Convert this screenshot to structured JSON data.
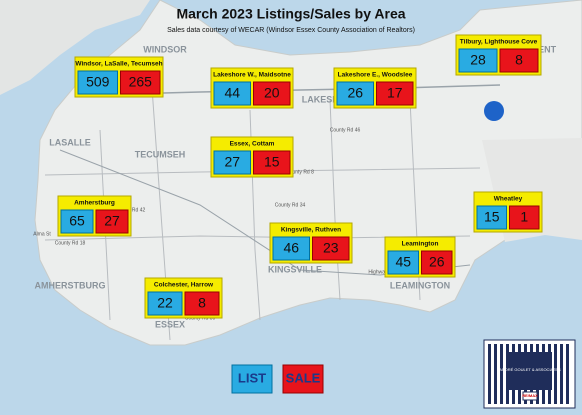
{
  "header": {
    "title": "March 2023 Listings/Sales by Area",
    "subtitle": "Sales data courtesy of WECAR (Windsor Essex County Association of Realtors)"
  },
  "areas": [
    {
      "name": "Windsor, LaSalle, Tecumseh",
      "list": 509,
      "sale": 265
    },
    {
      "name": "Lakeshore W., Maidsotne",
      "list": 44,
      "sale": 20
    },
    {
      "name": "Lakeshore E., Woodslee",
      "list": 26,
      "sale": 17
    },
    {
      "name": "Tilbury, Lighthouse Cove",
      "list": 28,
      "sale": 8
    },
    {
      "name": "Essex, Cottam",
      "list": 27,
      "sale": 15
    },
    {
      "name": "Amherstburg",
      "list": 65,
      "sale": 27
    },
    {
      "name": "Wheatley",
      "list": 15,
      "sale": 1
    },
    {
      "name": "Kingsville, Ruthven",
      "list": 46,
      "sale": 23
    },
    {
      "name": "Leamington",
      "list": 45,
      "sale": 26
    },
    {
      "name": "Colchester, Harrow",
      "list": 22,
      "sale": 8
    }
  ],
  "legend": {
    "list": "LIST",
    "sale": "SALE"
  },
  "places": [
    "WINDSOR",
    "TECUMSEH",
    "LASALLE",
    "AMHERSTBURG",
    "ESSEX",
    "KINGSVILLE",
    "LEAMINGTON",
    "CHATHAM-KENT",
    "LAKESHORE"
  ],
  "roads": [
    "Highway 401 E",
    "County Rd 8",
    "County Rd 20",
    "County Rd 50",
    "Highway 3",
    "County Rd 34",
    "Alma St",
    "County Rd 18",
    "County Rd 46",
    "County Rd 42"
  ],
  "logo": {
    "name": "ANDRÉ GOULET & ASSOCIATES",
    "brand": "RE/MAX"
  }
}
